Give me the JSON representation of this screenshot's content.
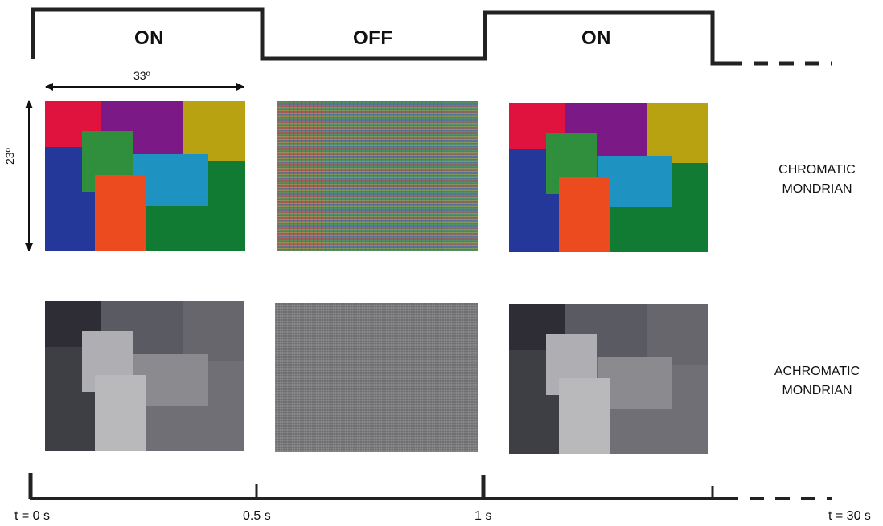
{
  "stimulus": {
    "phases": [
      {
        "id": "on-1",
        "label": "ON"
      },
      {
        "id": "off",
        "label": "OFF"
      },
      {
        "id": "on-2",
        "label": "ON"
      }
    ]
  },
  "dimensions": {
    "width_label": "33º",
    "height_label": "23º"
  },
  "rows": [
    {
      "id": "chromatic",
      "label_line1": "CHROMATIC",
      "label_line2": "MONDRIAN"
    },
    {
      "id": "achromatic",
      "label_line1": "ACHROMATIC",
      "label_line2": "MONDRIAN"
    }
  ],
  "timeline": {
    "ticks": [
      "t = 0 s",
      "0.5 s",
      "1 s"
    ],
    "end_label": "t = 30 s"
  },
  "colors": {
    "chromatic": {
      "red": "#e0133f",
      "purple": "#7b1a86",
      "olive": "#b8a212",
      "blue": "#233898",
      "green": "#2f8f3c",
      "cyan": "#1e93c2",
      "dark_green": "#117a33",
      "orange": "#ec4a1f"
    },
    "achromatic": {
      "red": "#2e2d35",
      "purple": "#5a5a62",
      "olive": "#66666c",
      "blue": "#3e3e45",
      "green": "#aeaeb3",
      "cyan": "#8a8a8f",
      "dark_green": "#6f6f75",
      "orange": "#b9b9bc"
    }
  }
}
